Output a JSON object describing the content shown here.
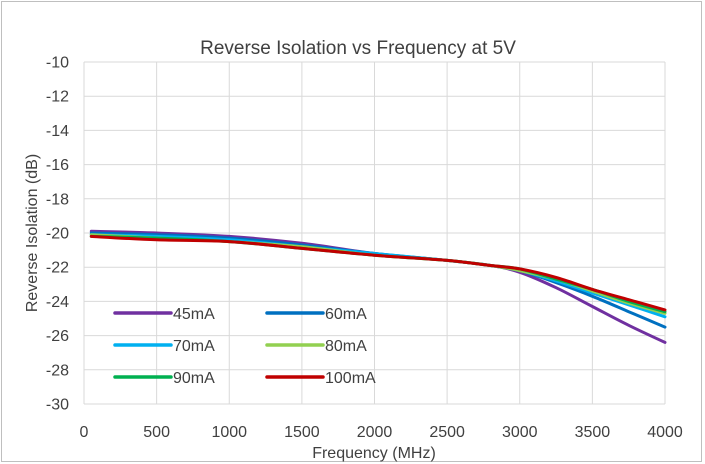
{
  "chart_data": {
    "type": "line",
    "title": "Reverse Isolation vs Frequency at 5V",
    "xlabel": "Frequency (MHz)",
    "ylabel": "Reverse Isolation (dB)",
    "xlim": [
      0,
      4000
    ],
    "ylim": [
      -30,
      -10
    ],
    "xticks": [
      0,
      500,
      1000,
      1500,
      2000,
      2500,
      3000,
      3500,
      4000
    ],
    "yticks": [
      -10,
      -12,
      -14,
      -16,
      -18,
      -20,
      -22,
      -24,
      -26,
      -28,
      -30
    ],
    "grid": true,
    "legend_position": "bottom-left",
    "x": [
      50,
      500,
      1000,
      1500,
      2000,
      2500,
      2800,
      3000,
      3250,
      3500,
      3750,
      4000
    ],
    "series": [
      {
        "name": "45mA",
        "color": "#7030a0",
        "values": [
          -19.9,
          -20.0,
          -20.2,
          -20.6,
          -21.2,
          -21.6,
          -21.9,
          -22.3,
          -23.2,
          -24.3,
          -25.4,
          -26.4
        ]
      },
      {
        "name": "60mA",
        "color": "#0070c0",
        "values": [
          -20.0,
          -20.1,
          -20.3,
          -20.7,
          -21.2,
          -21.6,
          -21.9,
          -22.2,
          -22.9,
          -23.7,
          -24.6,
          -25.5
        ]
      },
      {
        "name": "70mA",
        "color": "#00b0f0",
        "values": [
          -20.1,
          -20.2,
          -20.4,
          -20.8,
          -21.2,
          -21.6,
          -21.9,
          -22.2,
          -22.8,
          -23.5,
          -24.2,
          -24.9
        ]
      },
      {
        "name": "80mA",
        "color": "#92d050",
        "values": [
          -20.1,
          -20.3,
          -20.5,
          -20.8,
          -21.3,
          -21.6,
          -21.9,
          -22.2,
          -22.7,
          -23.4,
          -24.1,
          -24.7
        ]
      },
      {
        "name": "90mA",
        "color": "#00b050",
        "values": [
          -20.2,
          -20.3,
          -20.5,
          -20.9,
          -21.3,
          -21.6,
          -21.9,
          -22.1,
          -22.7,
          -23.3,
          -24.0,
          -24.6
        ]
      },
      {
        "name": "100mA",
        "color": "#c00000",
        "values": [
          -20.2,
          -20.4,
          -20.5,
          -20.9,
          -21.3,
          -21.6,
          -21.9,
          -22.1,
          -22.6,
          -23.3,
          -23.9,
          -24.5
        ]
      }
    ]
  }
}
